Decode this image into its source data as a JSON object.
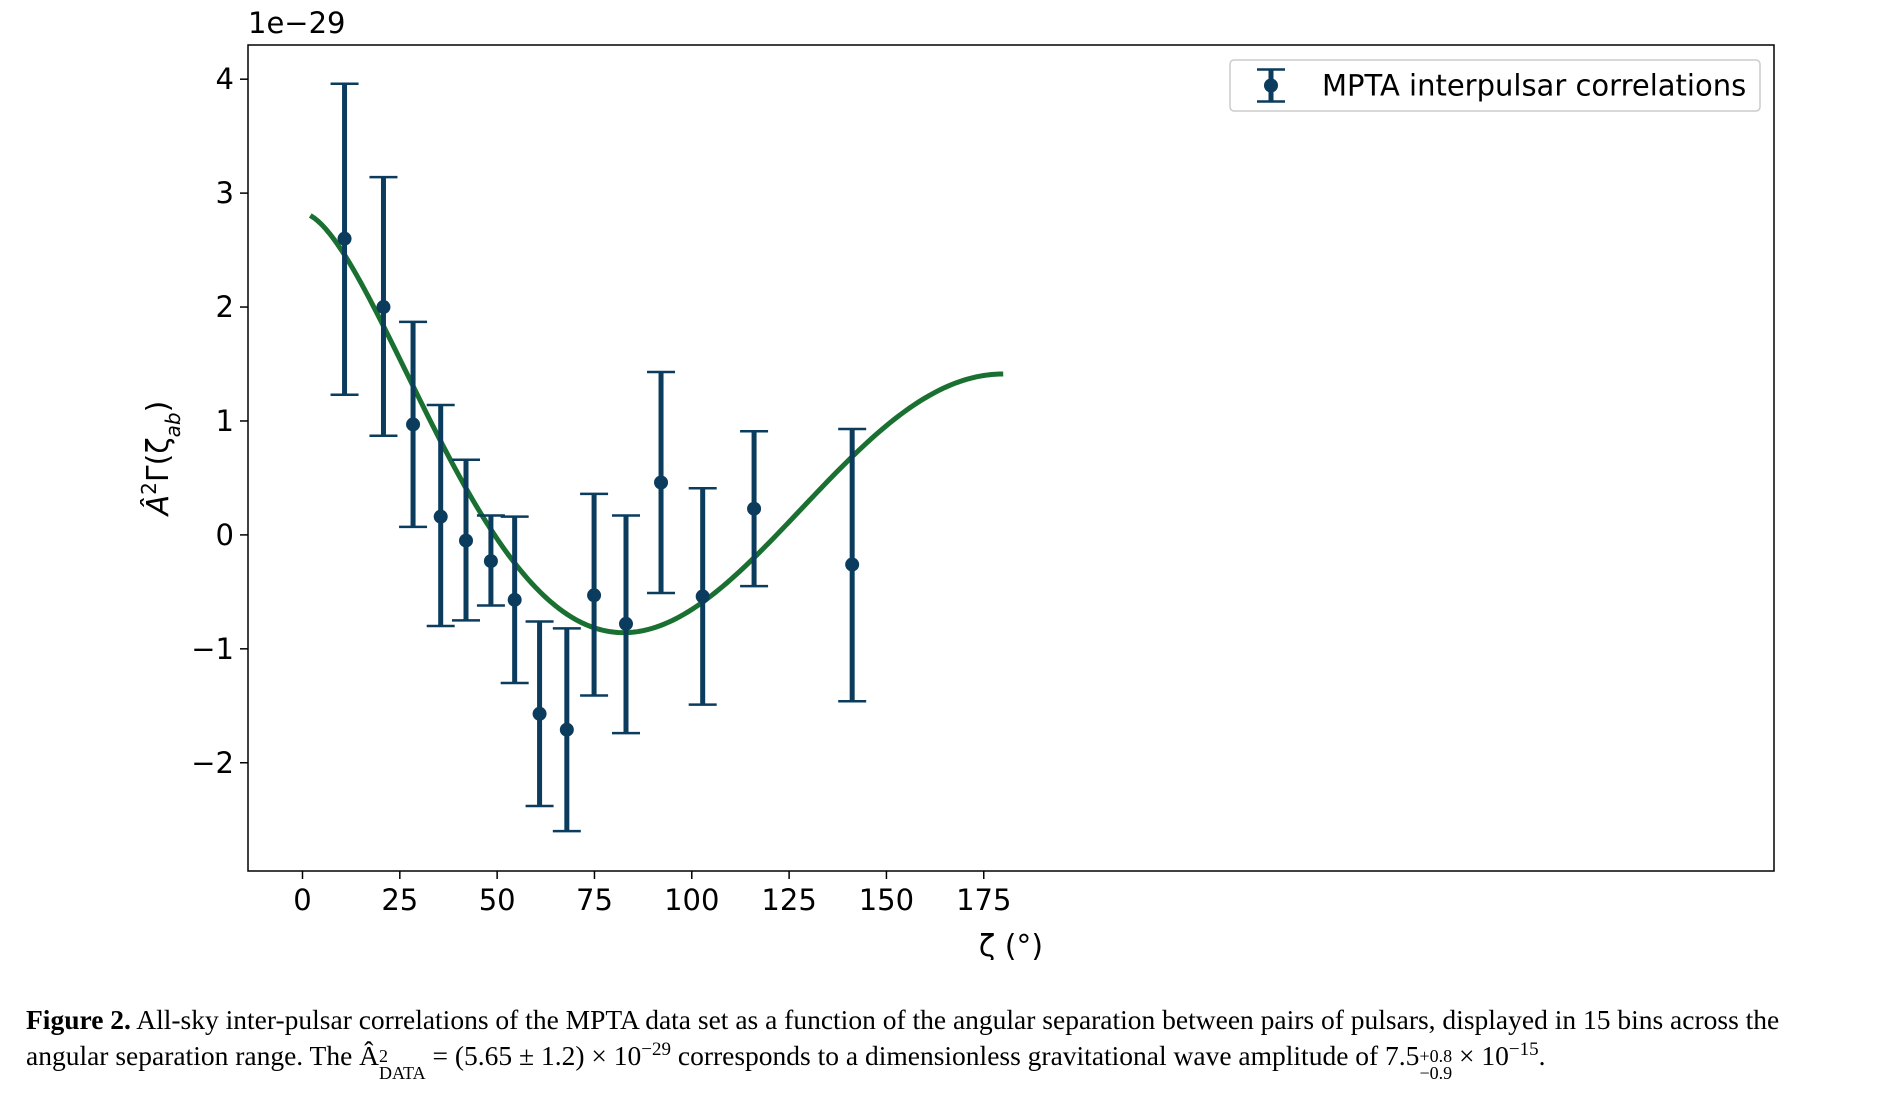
{
  "chart_data": {
    "type": "scatter",
    "xlabel": "ζ (°)",
    "ylabel": "Â²Γ(ζab)",
    "ylabel_main": "Â",
    "ylabel_sup": "2",
    "ylabel_mid": "Γ(ζ",
    "ylabel_sub": "ab",
    "ylabel_end": ")",
    "offset_text": "1e−29",
    "xlim": [
      -14,
      378
    ],
    "ylim": [
      -2.95,
      4.3
    ],
    "xticks": [
      0,
      25,
      50,
      75,
      100,
      125,
      150,
      175
    ],
    "xtick_labels": [
      "0",
      "25",
      "50",
      "75",
      "100",
      "125",
      "150",
      "175"
    ],
    "yticks": [
      -2,
      -1,
      0,
      1,
      2,
      3,
      4
    ],
    "ytick_labels": [
      "−2",
      "−1",
      "0",
      "1",
      "2",
      "3",
      "4"
    ],
    "grid": false,
    "legend": {
      "position": "top-right",
      "label": "MPTA interpulsar correlations"
    },
    "colors": {
      "points": "#0b3c5d",
      "curve": "#1a7031"
    },
    "series": [
      {
        "name": "MPTA interpulsar correlations",
        "kind": "errorbar",
        "x": [
          10.8,
          20.8,
          28.4,
          35.5,
          42.0,
          48.4,
          54.5,
          60.9,
          67.9,
          74.9,
          83.1,
          92.1,
          102.8,
          116.0,
          141.2
        ],
        "y": [
          2.6,
          2.0,
          0.97,
          0.16,
          -0.05,
          -0.23,
          -0.57,
          -1.57,
          -1.71,
          -0.53,
          -0.78,
          0.46,
          -0.54,
          0.23,
          -0.26
        ],
        "yerr_low": [
          1.37,
          1.13,
          0.9,
          0.96,
          0.7,
          0.39,
          0.73,
          0.81,
          0.89,
          0.88,
          0.96,
          0.97,
          0.95,
          0.68,
          1.2
        ],
        "yerr_high": [
          1.36,
          1.14,
          0.9,
          0.98,
          0.71,
          0.4,
          0.73,
          0.81,
          0.89,
          0.89,
          0.95,
          0.97,
          0.95,
          0.68,
          1.19
        ]
      }
    ],
    "curve": {
      "amplitude": 5.65,
      "x_range": [
        2,
        180
      ]
    }
  },
  "caption": {
    "label": "Figure 2.",
    "line1": " All-sky inter-pulsar correlations of the MPTA data set as a function of the angular separation between pairs of pulsars, displayed in 15 bins across the",
    "line2_a": "angular separation range. The Â",
    "line2_sup1": "2",
    "line2_sub1": "DATA",
    "line2_b": " = (5.65 ± 1.2) × 10",
    "line2_sup2": "−29",
    "line2_c": " corresponds to a dimensionless gravitational wave amplitude of 7.5",
    "line2_sup3": "+0.8",
    "line2_sub3": "−0.9",
    "line2_d": " × 10",
    "line2_sup4": "−15",
    "line2_e": "."
  }
}
